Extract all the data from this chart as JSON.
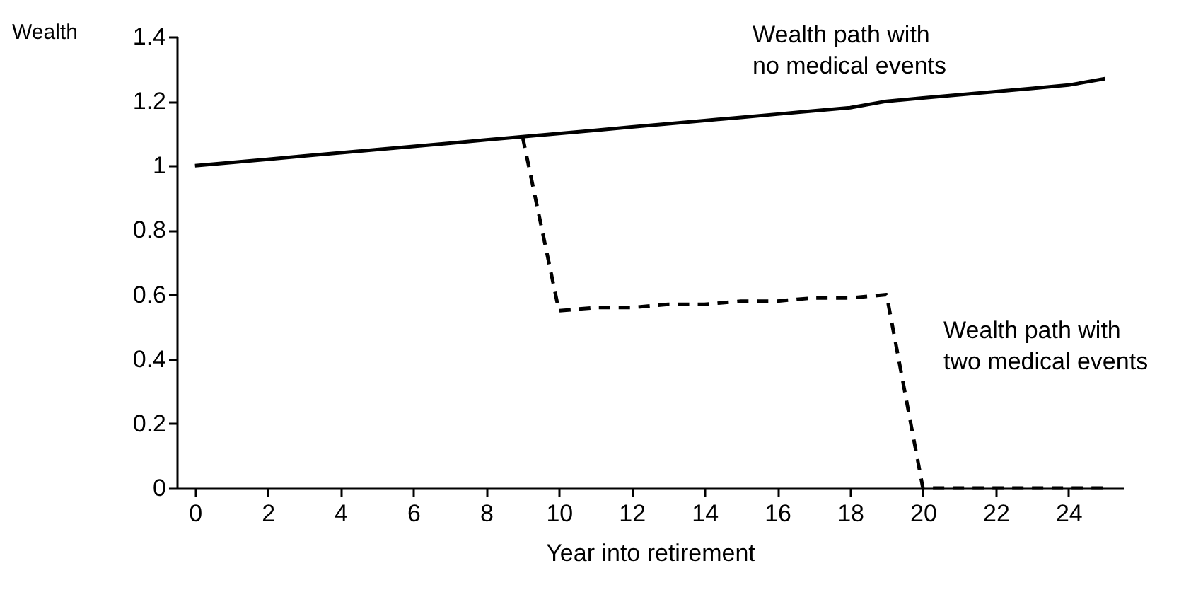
{
  "chart_data": {
    "type": "line",
    "xlabel": "Year into retirement",
    "ylabel": "Wealth",
    "x": [
      0,
      1,
      2,
      3,
      4,
      5,
      6,
      7,
      8,
      9,
      10,
      11,
      12,
      13,
      14,
      15,
      16,
      17,
      18,
      19,
      20,
      21,
      22,
      23,
      24,
      25
    ],
    "series": [
      {
        "color": "#000000",
        "line_style": "solid",
        "values": [
          1.0,
          1.01,
          1.02,
          1.03,
          1.04,
          1.05,
          1.06,
          1.07,
          1.08,
          1.09,
          1.1,
          1.11,
          1.12,
          1.13,
          1.14,
          1.15,
          1.16,
          1.17,
          1.18,
          1.2,
          1.21,
          1.22,
          1.23,
          1.24,
          1.25,
          1.27
        ]
      },
      {
        "color": "#000000",
        "line_style": "dashed",
        "x": [
          9,
          10,
          11,
          12,
          13,
          14,
          15,
          16,
          17,
          18,
          19,
          20,
          21,
          22,
          23,
          24,
          25
        ],
        "values": [
          1.09,
          0.55,
          0.56,
          0.56,
          0.57,
          0.57,
          0.58,
          0.58,
          0.59,
          0.59,
          0.6,
          0,
          0,
          0,
          0,
          0,
          0
        ]
      }
    ],
    "xlim": [
      -0.5,
      25.5
    ],
    "xticks": [
      0,
      2,
      4,
      6,
      8,
      10,
      12,
      14,
      16,
      18,
      20,
      22,
      24
    ],
    "ylim": [
      0,
      1.4
    ],
    "yticks": [
      0,
      0.2,
      0.4,
      0.6,
      0.8,
      1,
      1.2,
      1.4
    ],
    "grid": false,
    "marker": "none",
    "annotations": [
      "Wealth path with\nno medical events",
      "Wealth path with\ntwo medical events"
    ]
  }
}
